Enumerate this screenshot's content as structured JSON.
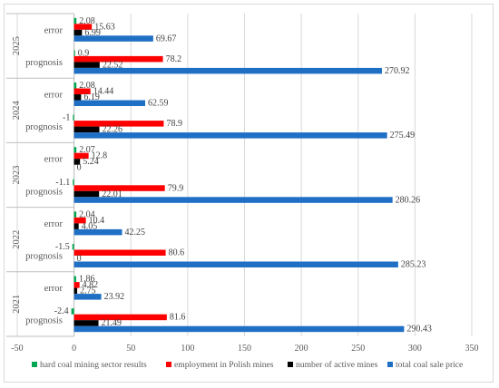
{
  "chart_data": {
    "type": "bar",
    "orientation": "horizontal",
    "xlim": [
      -50,
      350
    ],
    "x_ticks": [
      "-50",
      "0",
      "50",
      "100",
      "150",
      "200",
      "250",
      "300",
      "350"
    ],
    "grid": "vertical",
    "legend_position": "bottom",
    "groups": [
      {
        "label": "2025",
        "rows": [
          {
            "label": "error",
            "values": [
              2.08,
              15.63,
              6.99,
              69.67
            ],
            "labels": [
              "2.08",
              "15.63",
              "6.99",
              "69.67"
            ]
          },
          {
            "label": "prognosis",
            "values": [
              0.9,
              78.2,
              22.52,
              270.92
            ],
            "labels": [
              "0.9",
              "78.2",
              "22.52",
              "270.92"
            ]
          }
        ]
      },
      {
        "label": "2024",
        "rows": [
          {
            "label": "error",
            "values": [
              2.08,
              14.44,
              6.19,
              62.59
            ],
            "labels": [
              "2.08",
              "14.44",
              "6.19",
              "62.59"
            ]
          },
          {
            "label": "prognosis",
            "values": [
              -1,
              78.9,
              22.26,
              275.49
            ],
            "labels": [
              "-1",
              "78.9",
              "22.26",
              "275.49"
            ]
          }
        ]
      },
      {
        "label": "2023",
        "rows": [
          {
            "label": "error",
            "values": [
              2.07,
              12.8,
              5.24,
              0
            ],
            "labels": [
              "2.07",
              "12.8",
              "5.24",
              "0"
            ]
          },
          {
            "label": "prognosis",
            "values": [
              -1.1,
              79.9,
              22.01,
              280.26
            ],
            "labels": [
              "-1.1",
              "79.9",
              "22.01",
              "280.26"
            ]
          }
        ]
      },
      {
        "label": "2022",
        "rows": [
          {
            "label": "error",
            "values": [
              2.04,
              10.4,
              4.05,
              42.25
            ],
            "labels": [
              "2.04",
              "10.4",
              "4.05",
              "42.25"
            ]
          },
          {
            "label": "prognosis",
            "values": [
              -1.5,
              80.6,
              0,
              285.23
            ],
            "labels": [
              "-1.5",
              "80.6",
              "0",
              "285.23"
            ]
          }
        ]
      },
      {
        "label": "2021",
        "rows": [
          {
            "label": "error",
            "values": [
              1.86,
              4.82,
              2.75,
              23.92
            ],
            "labels": [
              "1.86",
              "4.82",
              "2.75",
              "23.92"
            ]
          },
          {
            "label": "prognosis",
            "values": [
              -2.4,
              81.6,
              21.49,
              290.43
            ],
            "labels": [
              "-2.4",
              "81.6",
              "21.49",
              "290.43"
            ]
          }
        ]
      }
    ],
    "series": [
      {
        "name": "hard coal mining sector results",
        "color": "#00a651"
      },
      {
        "name": "employment in Polish mines",
        "color": "#ff0000"
      },
      {
        "name": "number of active mines",
        "color": "#000000"
      },
      {
        "name": "total coal sale price",
        "color": "#1f6fc5"
      }
    ]
  }
}
